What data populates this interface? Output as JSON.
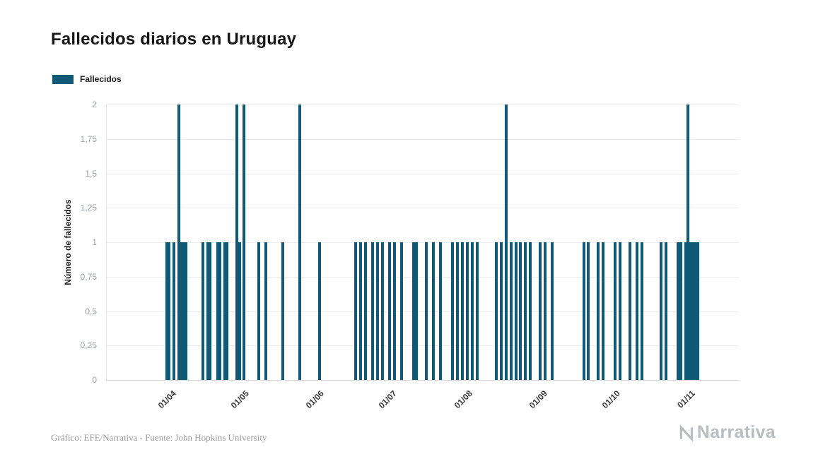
{
  "header": {
    "title": "Fallecidos diarios en Uruguay"
  },
  "legend": {
    "label": "Fallecidos"
  },
  "footer": {
    "credit": "Gráfico: EFE/Narrativa - Fuente: John Hopkins University",
    "brand": "Narrativa"
  },
  "chart_data": {
    "type": "bar",
    "title": "Fallecidos diarios en Uruguay",
    "xlabel": "",
    "ylabel": "Número de fallecidos",
    "ylim": [
      0,
      2
    ],
    "grid": true,
    "legend_position": "top-left",
    "bar_color": "#105a78",
    "y_ticks": [
      {
        "value": 2,
        "label": "2"
      },
      {
        "value": 1.75,
        "label": "1,75"
      },
      {
        "value": 1.5,
        "label": "1,5"
      },
      {
        "value": 1.25,
        "label": "1,25"
      },
      {
        "value": 1,
        "label": "1"
      },
      {
        "value": 0.75,
        "label": "0,75"
      },
      {
        "value": 0.5,
        "label": "0,5"
      },
      {
        "value": 0.25,
        "label": "0,25"
      },
      {
        "value": 0,
        "label": "0"
      }
    ],
    "x_ticks": [
      "01/04",
      "01/05",
      "01/06",
      "01/07",
      "01/08",
      "01/09",
      "01/10",
      "01/11"
    ],
    "x_domain": {
      "start": "06/03",
      "end": "22/11"
    },
    "series": [
      {
        "name": "Fallecidos",
        "points": [
          {
            "date": "31/03",
            "value": 1
          },
          {
            "date": "01/04",
            "value": 1
          },
          {
            "date": "03/04",
            "value": 1
          },
          {
            "date": "05/04",
            "value": 2
          },
          {
            "date": "06/04",
            "value": 1
          },
          {
            "date": "07/04",
            "value": 1
          },
          {
            "date": "08/04",
            "value": 1
          },
          {
            "date": "15/04",
            "value": 1
          },
          {
            "date": "17/04",
            "value": 1
          },
          {
            "date": "18/04",
            "value": 1
          },
          {
            "date": "21/04",
            "value": 1
          },
          {
            "date": "22/04",
            "value": 1
          },
          {
            "date": "24/04",
            "value": 1
          },
          {
            "date": "25/04",
            "value": 1
          },
          {
            "date": "29/04",
            "value": 2
          },
          {
            "date": "30/04",
            "value": 1
          },
          {
            "date": "02/05",
            "value": 2
          },
          {
            "date": "08/05",
            "value": 1
          },
          {
            "date": "11/05",
            "value": 1
          },
          {
            "date": "18/05",
            "value": 1
          },
          {
            "date": "25/05",
            "value": 2
          },
          {
            "date": "02/06",
            "value": 1
          },
          {
            "date": "17/06",
            "value": 1
          },
          {
            "date": "19/06",
            "value": 1
          },
          {
            "date": "21/06",
            "value": 1
          },
          {
            "date": "24/06",
            "value": 1
          },
          {
            "date": "26/06",
            "value": 1
          },
          {
            "date": "28/06",
            "value": 1
          },
          {
            "date": "01/07",
            "value": 1
          },
          {
            "date": "03/07",
            "value": 1
          },
          {
            "date": "06/07",
            "value": 1
          },
          {
            "date": "11/07",
            "value": 1
          },
          {
            "date": "12/07",
            "value": 1
          },
          {
            "date": "16/07",
            "value": 1
          },
          {
            "date": "19/07",
            "value": 1
          },
          {
            "date": "22/07",
            "value": 1
          },
          {
            "date": "27/07",
            "value": 1
          },
          {
            "date": "29/07",
            "value": 1
          },
          {
            "date": "31/07",
            "value": 1
          },
          {
            "date": "02/08",
            "value": 1
          },
          {
            "date": "04/08",
            "value": 1
          },
          {
            "date": "06/08",
            "value": 1
          },
          {
            "date": "14/08",
            "value": 1
          },
          {
            "date": "16/08",
            "value": 1
          },
          {
            "date": "18/08",
            "value": 2
          },
          {
            "date": "20/08",
            "value": 1
          },
          {
            "date": "22/08",
            "value": 1
          },
          {
            "date": "24/08",
            "value": 1
          },
          {
            "date": "26/08",
            "value": 1
          },
          {
            "date": "28/08",
            "value": 1
          },
          {
            "date": "01/09",
            "value": 1
          },
          {
            "date": "03/09",
            "value": 1
          },
          {
            "date": "06/09",
            "value": 1
          },
          {
            "date": "19/09",
            "value": 1
          },
          {
            "date": "21/09",
            "value": 1
          },
          {
            "date": "25/09",
            "value": 1
          },
          {
            "date": "27/09",
            "value": 1
          },
          {
            "date": "02/10",
            "value": 1
          },
          {
            "date": "04/10",
            "value": 1
          },
          {
            "date": "08/10",
            "value": 1
          },
          {
            "date": "11/10",
            "value": 1
          },
          {
            "date": "13/10",
            "value": 1
          },
          {
            "date": "21/10",
            "value": 1
          },
          {
            "date": "23/10",
            "value": 1
          },
          {
            "date": "28/10",
            "value": 1
          },
          {
            "date": "29/10",
            "value": 1
          },
          {
            "date": "31/10",
            "value": 1
          },
          {
            "date": "01/11",
            "value": 2
          },
          {
            "date": "02/11",
            "value": 1
          },
          {
            "date": "03/11",
            "value": 1
          },
          {
            "date": "04/11",
            "value": 1
          },
          {
            "date": "05/11",
            "value": 1
          }
        ]
      }
    ]
  }
}
